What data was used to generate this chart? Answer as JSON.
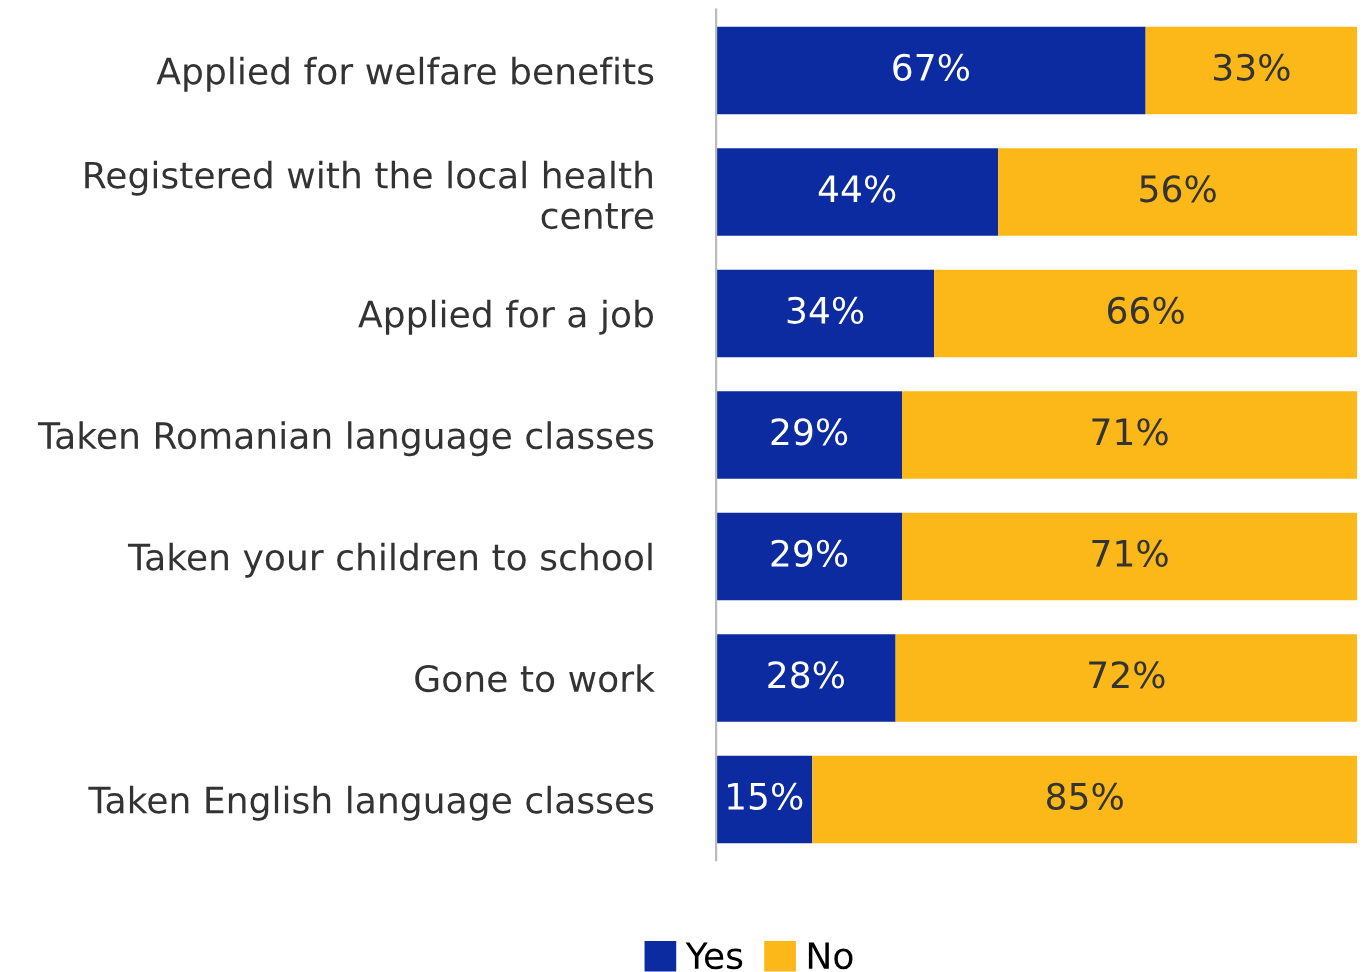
{
  "chart_data": {
    "type": "bar",
    "orientation": "horizontal",
    "stacked": true,
    "legend": "bottom",
    "grid": false,
    "tick_labels": "y",
    "categories": [
      "Applied for welfare benefits",
      "Registered with the local health\ncentre",
      "Applied for a job",
      "Taken Romanian language classes",
      "Taken your children to school",
      "Gone to work",
      "Taken English language classes"
    ],
    "series": [
      {
        "name": "Yes",
        "color": "#0c2ba0",
        "values": [
          67,
          44,
          34,
          29,
          29,
          28,
          15
        ],
        "value_labels": [
          "67%",
          "44%",
          "34%",
          "29%",
          "29%",
          "28%",
          "15%"
        ]
      },
      {
        "name": "No",
        "color": "#fbb818",
        "values": [
          33,
          56,
          66,
          71,
          71,
          72,
          85
        ],
        "value_labels": [
          "33%",
          "56%",
          "66%",
          "71%",
          "71%",
          "72%",
          "85%"
        ]
      }
    ]
  }
}
